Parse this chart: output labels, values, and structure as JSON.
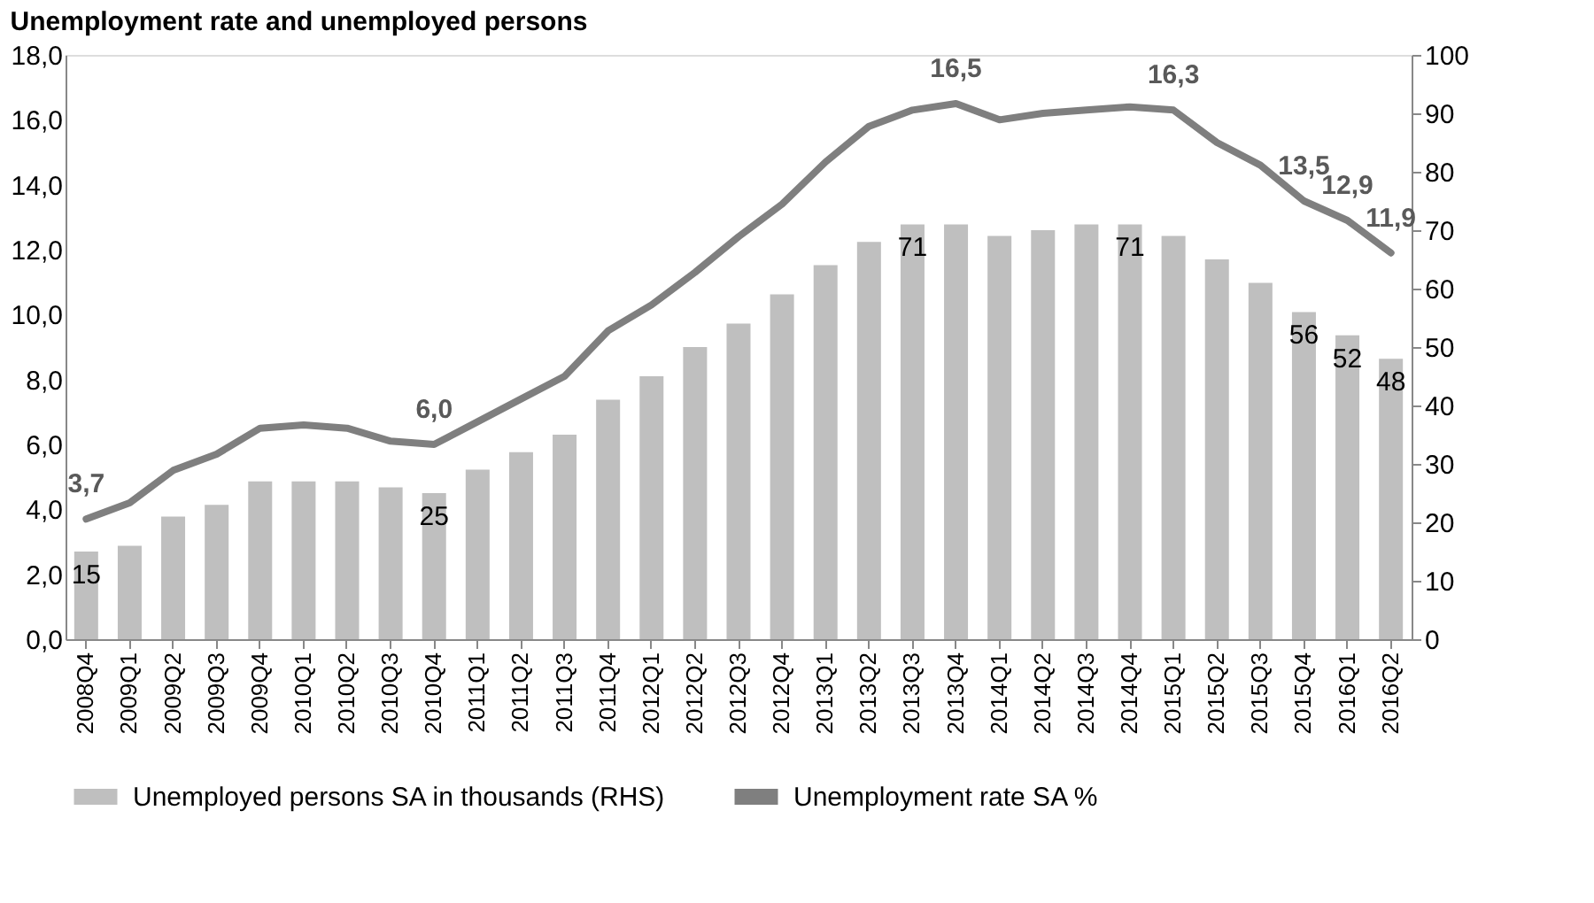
{
  "chart_data": {
    "type": "bar",
    "title": "Unemployment rate and unemployed persons",
    "categories": [
      "2008Q4",
      "2009Q1",
      "2009Q2",
      "2009Q3",
      "2009Q4",
      "2010Q1",
      "2010Q2",
      "2010Q3",
      "2010Q4",
      "2011Q1",
      "2011Q2",
      "2011Q3",
      "2011Q4",
      "2012Q1",
      "2012Q2",
      "2012Q3",
      "2012Q4",
      "2013Q1",
      "2013Q2",
      "2013Q3",
      "2013Q4",
      "2014Q1",
      "2014Q2",
      "2014Q3",
      "2014Q4",
      "2015Q1",
      "2015Q2",
      "2015Q3",
      "2015Q4",
      "2016Q1",
      "2016Q2"
    ],
    "series": [
      {
        "name": "Unemployed persons SA in thousands (RHS)",
        "axis": "y2",
        "color": "#bfbfbf",
        "values": [
          15,
          16,
          21,
          23,
          27,
          27,
          27,
          26,
          25,
          29,
          32,
          35,
          41,
          45,
          50,
          54,
          59,
          64,
          68,
          71,
          71,
          69,
          70,
          71,
          71,
          69,
          65,
          61,
          56,
          52,
          48
        ],
        "value_labels": [
          "15",
          null,
          null,
          null,
          null,
          null,
          null,
          null,
          "25",
          null,
          null,
          null,
          null,
          null,
          null,
          null,
          null,
          null,
          null,
          "71",
          null,
          null,
          null,
          null,
          "71",
          null,
          null,
          null,
          "56",
          "52",
          "48"
        ]
      },
      {
        "name": "Unemployment rate SA %",
        "type": "line",
        "color": "#7f7f7f",
        "values": [
          3.7,
          4.2,
          5.2,
          5.7,
          6.5,
          6.6,
          6.5,
          6.1,
          6.0,
          6.7,
          7.4,
          8.1,
          9.5,
          10.3,
          11.3,
          12.4,
          13.4,
          14.7,
          15.8,
          16.3,
          16.5,
          16.0,
          16.2,
          16.3,
          16.4,
          16.3,
          15.3,
          14.6,
          13.5,
          12.9,
          11.9
        ],
        "value_labels": [
          "3,7",
          null,
          null,
          null,
          null,
          null,
          null,
          null,
          "6,0",
          null,
          null,
          null,
          null,
          null,
          null,
          null,
          null,
          null,
          null,
          null,
          "16,5",
          null,
          null,
          null,
          null,
          "16,3",
          null,
          null,
          "13,5",
          "12,9",
          "11,9"
        ]
      }
    ],
    "ylim": [
      0,
      18
    ],
    "yticks": [
      {
        "value": 0,
        "label": "0,0"
      },
      {
        "value": 2,
        "label": "2,0"
      },
      {
        "value": 4,
        "label": "4,0"
      },
      {
        "value": 6,
        "label": "6,0"
      },
      {
        "value": 8,
        "label": "8,0"
      },
      {
        "value": 10,
        "label": "10,0"
      },
      {
        "value": 12,
        "label": "12,0"
      },
      {
        "value": 14,
        "label": "14,0"
      },
      {
        "value": 16,
        "label": "16,0"
      },
      {
        "value": 18,
        "label": "18,0"
      }
    ],
    "y2lim": [
      0,
      100
    ],
    "y2ticks": [
      0,
      10,
      20,
      30,
      40,
      50,
      60,
      70,
      80,
      90,
      100
    ],
    "grid": false,
    "legend": "bottom",
    "line_style": "solid",
    "marker": "none"
  }
}
